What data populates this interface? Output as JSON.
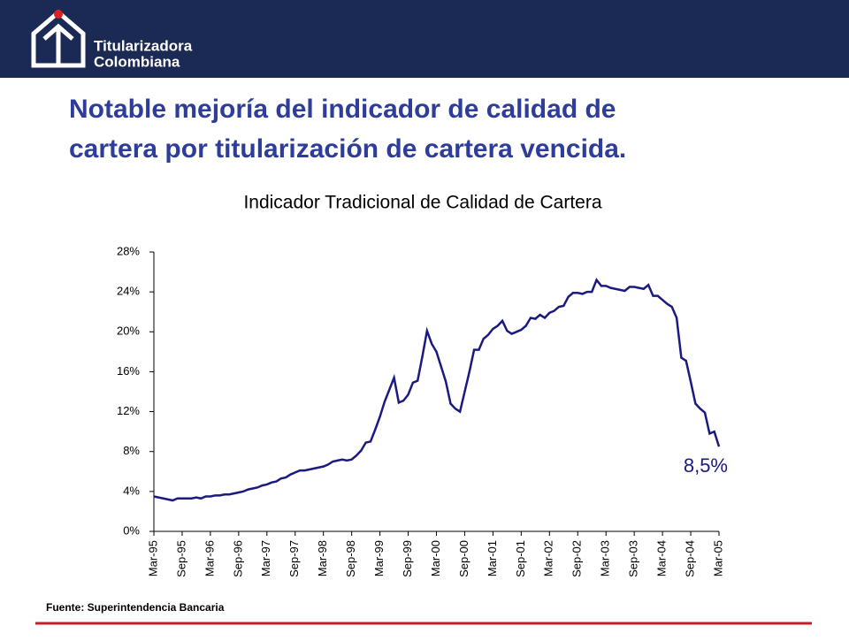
{
  "header": {
    "logo_line1": "Titularizadora",
    "logo_line2": "Colombiana"
  },
  "slide_title": [
    "Notable mejoría del indicador de calidad de",
    "cartera por titularización de cartera vencida."
  ],
  "source": "Fuente: Superintendencia Bancaria",
  "chart_data": {
    "type": "line",
    "title": "Indicador Tradicional de Calidad de Cartera",
    "color": "#1a1a80",
    "categories": [
      "Mar-95",
      null,
      null,
      null,
      null,
      null,
      "Sep-95",
      null,
      null,
      null,
      null,
      null,
      "Mar-96",
      null,
      null,
      null,
      null,
      null,
      "Sep-96",
      null,
      null,
      null,
      null,
      null,
      "Mar-97",
      null,
      null,
      null,
      null,
      null,
      "Sep-97",
      null,
      null,
      null,
      null,
      null,
      "Mar-98",
      null,
      null,
      null,
      null,
      null,
      "Sep-98",
      null,
      null,
      null,
      null,
      null,
      "Mar-99",
      null,
      null,
      null,
      null,
      null,
      "Sep-99",
      null,
      null,
      null,
      null,
      null,
      "Mar-00",
      null,
      null,
      null,
      null,
      null,
      "Sep-00",
      null,
      null,
      null,
      null,
      null,
      "Mar-01",
      null,
      null,
      null,
      null,
      null,
      "Sep-01",
      null,
      null,
      null,
      null,
      null,
      "Mar-02",
      null,
      null,
      null,
      null,
      null,
      "Sep-02",
      null,
      null,
      null,
      null,
      null,
      "Mar-03",
      null,
      null,
      null,
      null,
      null,
      "Sep-03",
      null,
      null,
      null,
      null,
      null,
      "Mar-04",
      null,
      null,
      null,
      null,
      null,
      "Sep-04",
      null,
      null,
      null,
      null,
      null,
      "Mar-05"
    ],
    "values": [
      3.5,
      3.4,
      3.3,
      3.2,
      3.1,
      3.3,
      3.3,
      3.3,
      3.3,
      3.4,
      3.3,
      3.5,
      3.5,
      3.6,
      3.6,
      3.7,
      3.7,
      3.8,
      3.9,
      4.0,
      4.2,
      4.3,
      4.4,
      4.6,
      4.7,
      4.9,
      5.0,
      5.3,
      5.4,
      5.7,
      5.9,
      6.1,
      6.1,
      6.2,
      6.3,
      6.4,
      6.5,
      6.7,
      7.0,
      7.1,
      7.2,
      7.1,
      7.2,
      7.6,
      8.1,
      8.9,
      9.0,
      10.2,
      11.5,
      13.0,
      14.2,
      15.4,
      12.9,
      13.1,
      13.7,
      14.9,
      15.1,
      17.5,
      20.1,
      18.8,
      18.0,
      16.5,
      15.0,
      12.8,
      12.3,
      12.0,
      14.0,
      16.0,
      18.2,
      18.2,
      19.3,
      19.7,
      20.3,
      20.6,
      21.1,
      20.1,
      19.8,
      20.0,
      20.2,
      20.6,
      21.4,
      21.3,
      21.7,
      21.4,
      21.9,
      22.1,
      22.5,
      22.6,
      23.5,
      23.9,
      23.9,
      23.8,
      24.0,
      24.0,
      25.2,
      24.6,
      24.6,
      24.4,
      24.3,
      24.2,
      24.1,
      24.5,
      24.5,
      24.4,
      24.3,
      24.7,
      23.6,
      23.6,
      23.2,
      22.8,
      22.5,
      21.4,
      17.4,
      17.1,
      15.0,
      12.8,
      12.3,
      11.9,
      9.8,
      10.0,
      8.5
    ],
    "value_labels": [
      null,
      null,
      null,
      null,
      null,
      null,
      null,
      null,
      null,
      null,
      null,
      null,
      null,
      null,
      null,
      null,
      null,
      null,
      null,
      null,
      null,
      null,
      null,
      null,
      null,
      null,
      null,
      null,
      null,
      null,
      null,
      null,
      null,
      null,
      null,
      null,
      null,
      null,
      null,
      null,
      null,
      null,
      null,
      null,
      null,
      null,
      null,
      null,
      null,
      null,
      null,
      null,
      null,
      null,
      null,
      null,
      null,
      null,
      null,
      null,
      null,
      null,
      null,
      null,
      null,
      null,
      null,
      null,
      null,
      null,
      null,
      null,
      null,
      null,
      null,
      null,
      null,
      null,
      null,
      null,
      null,
      null,
      null,
      null,
      null,
      null,
      null,
      null,
      null,
      null,
      null,
      null,
      null,
      null,
      null,
      null,
      null,
      null,
      null,
      null,
      null,
      null,
      null,
      null,
      null,
      null,
      null,
      null,
      null,
      null,
      null,
      null,
      null,
      null,
      null,
      null,
      null,
      null,
      null,
      null,
      "8,5%"
    ],
    "ylim": [
      0,
      28
    ],
    "yticks": [
      {
        "value": 0,
        "label": "0%"
      },
      {
        "value": 4,
        "label": "4%"
      },
      {
        "value": 8,
        "label": "8%"
      },
      {
        "value": 12,
        "label": "12%"
      },
      {
        "value": 16,
        "label": "16%"
      },
      {
        "value": 20,
        "label": "20%"
      },
      {
        "value": 24,
        "label": "24%"
      },
      {
        "value": 28,
        "label": "28%"
      }
    ],
    "grid": false
  }
}
